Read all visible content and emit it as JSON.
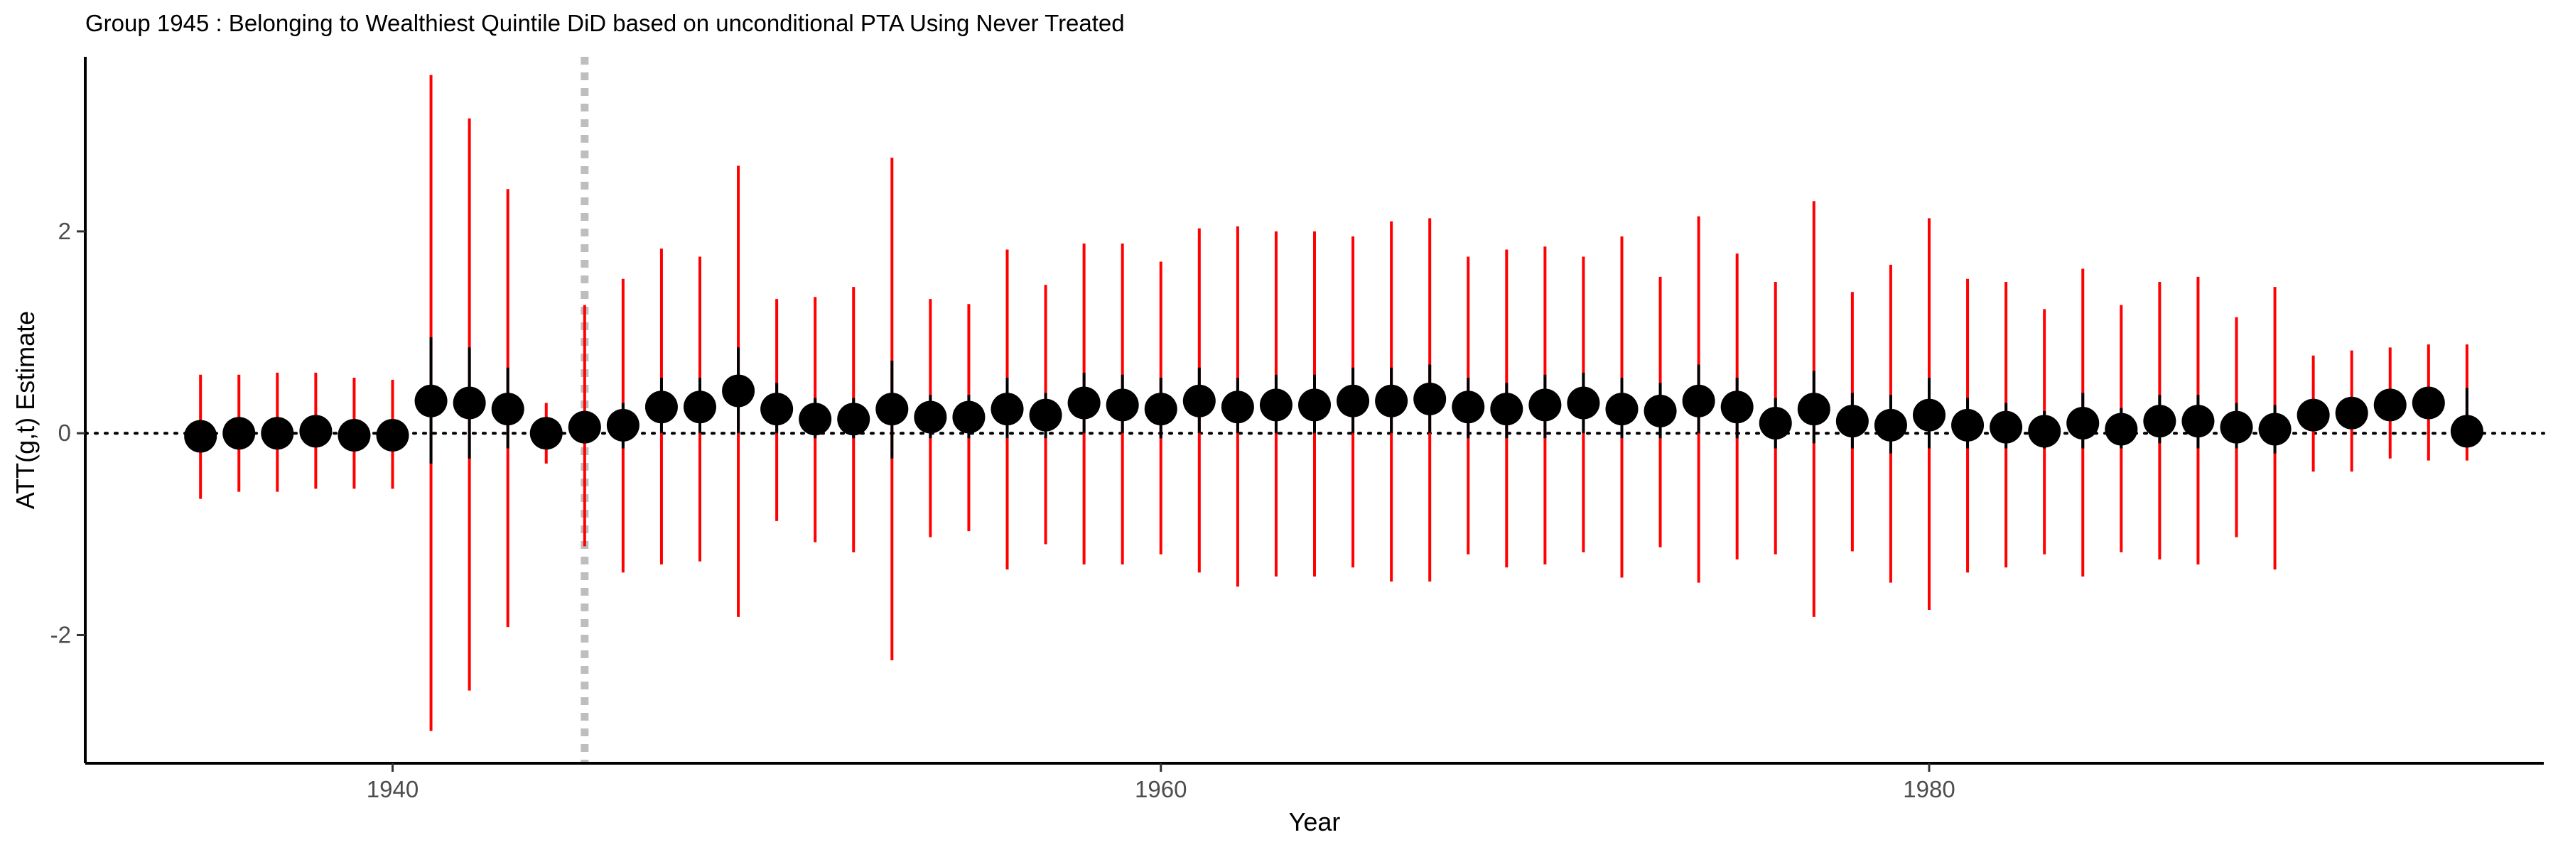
{
  "chart_data": {
    "type": "scatter",
    "title": "Group 1945 : Belonging to Wealthiest Quintile DiD based on unconditional PTA Using Never Treated",
    "xlabel": "Year",
    "ylabel": "ATT(g,t) Estimate",
    "xlim": [
      1932,
      1996
    ],
    "ylim": [
      -3.27,
      3.73
    ],
    "xticks": [
      1940,
      1960,
      1980
    ],
    "yticks": [
      -2,
      0,
      2
    ],
    "reference_line_y": 0,
    "treatment_line_x": 1945,
    "grid": false,
    "colors": {
      "point": "#000000",
      "inner_ci": "#000000",
      "outer_ci": "#ff0000",
      "treatment_line": "#bebebe"
    },
    "series": [
      {
        "x": [
          1935,
          1936,
          1937,
          1938,
          1939,
          1940,
          1941,
          1942,
          1943,
          1944,
          1945,
          1946,
          1947,
          1948,
          1949,
          1950,
          1951,
          1952,
          1953,
          1954,
          1955,
          1956,
          1957,
          1958,
          1959,
          1960,
          1961,
          1962,
          1963,
          1964,
          1965,
          1966,
          1967,
          1968,
          1969,
          1970,
          1971,
          1972,
          1973,
          1974,
          1975,
          1976,
          1977,
          1978,
          1979,
          1980,
          1981,
          1982,
          1983,
          1984,
          1985,
          1986,
          1987,
          1988,
          1989,
          1990,
          1991,
          1992,
          1993,
          1994
        ],
        "y": [
          -0.03,
          0.0,
          0.0,
          0.02,
          -0.02,
          -0.02,
          0.32,
          0.3,
          0.24,
          0.0,
          0.06,
          0.08,
          0.26,
          0.26,
          0.42,
          0.24,
          0.14,
          0.14,
          0.24,
          0.16,
          0.16,
          0.24,
          0.18,
          0.3,
          0.28,
          0.24,
          0.32,
          0.26,
          0.28,
          0.28,
          0.32,
          0.32,
          0.34,
          0.26,
          0.24,
          0.28,
          0.3,
          0.24,
          0.22,
          0.32,
          0.26,
          0.1,
          0.24,
          0.12,
          0.08,
          0.18,
          0.08,
          0.06,
          0.02,
          0.1,
          0.04,
          0.12,
          0.12,
          0.06,
          0.04,
          0.18,
          0.2,
          0.28,
          0.3,
          0.02
        ],
        "inner_ci_lower": [
          -0.15,
          -0.12,
          -0.12,
          -0.1,
          -0.14,
          -0.14,
          -0.3,
          -0.25,
          -0.15,
          -0.08,
          -0.1,
          -0.15,
          0.0,
          0.0,
          0.0,
          0.0,
          -0.05,
          -0.05,
          -0.25,
          -0.05,
          -0.05,
          -0.05,
          -0.05,
          0.0,
          0.0,
          -0.05,
          0.0,
          0.0,
          0.0,
          0.0,
          0.0,
          0.0,
          0.0,
          -0.05,
          -0.05,
          -0.05,
          0.0,
          -0.05,
          -0.05,
          0.0,
          -0.05,
          -0.15,
          -0.1,
          -0.15,
          -0.2,
          -0.15,
          -0.15,
          -0.15,
          -0.15,
          -0.15,
          -0.15,
          -0.1,
          -0.15,
          -0.15,
          -0.2,
          0.05,
          0.05,
          0.15,
          0.15,
          0.15
        ],
        "inner_ci_upper": [
          0.1,
          0.12,
          0.12,
          0.14,
          0.1,
          0.1,
          0.95,
          0.85,
          0.65,
          0.08,
          0.2,
          0.3,
          0.55,
          0.55,
          0.85,
          0.5,
          0.35,
          0.35,
          0.72,
          0.38,
          0.38,
          0.55,
          0.4,
          0.6,
          0.58,
          0.55,
          0.65,
          0.55,
          0.58,
          0.58,
          0.65,
          0.65,
          0.68,
          0.55,
          0.5,
          0.58,
          0.6,
          0.55,
          0.5,
          0.68,
          0.55,
          0.35,
          0.62,
          0.4,
          0.38,
          0.55,
          0.35,
          0.3,
          0.22,
          0.4,
          0.25,
          0.38,
          0.38,
          0.3,
          0.28,
          0.32,
          0.35,
          0.42,
          0.45,
          0.45
        ],
        "outer_ci_lower": [
          -0.65,
          -0.58,
          -0.58,
          -0.55,
          -0.55,
          -0.55,
          -2.95,
          -2.55,
          -1.92,
          -0.3,
          -1.12,
          -1.38,
          -1.3,
          -1.27,
          -1.82,
          -0.87,
          -1.08,
          -1.18,
          -2.25,
          -1.03,
          -0.97,
          -1.35,
          -1.1,
          -1.3,
          -1.3,
          -1.2,
          -1.38,
          -1.52,
          -1.42,
          -1.42,
          -1.33,
          -1.47,
          -1.47,
          -1.2,
          -1.33,
          -1.3,
          -1.18,
          -1.43,
          -1.13,
          -1.48,
          -1.25,
          -1.2,
          -1.82,
          -1.17,
          -1.48,
          -1.75,
          -1.38,
          -1.33,
          -1.2,
          -1.42,
          -1.18,
          -1.25,
          -1.3,
          -1.03,
          -1.35,
          -0.38,
          -0.38,
          -0.25,
          -0.27,
          -0.27
        ],
        "outer_ci_upper": [
          0.58,
          0.58,
          0.6,
          0.6,
          0.55,
          0.53,
          3.55,
          3.12,
          2.42,
          0.3,
          1.27,
          1.53,
          1.83,
          1.75,
          2.65,
          1.33,
          1.35,
          1.45,
          2.73,
          1.33,
          1.28,
          1.82,
          1.47,
          1.88,
          1.88,
          1.7,
          2.03,
          2.05,
          2.0,
          2.0,
          1.95,
          2.1,
          2.13,
          1.75,
          1.82,
          1.85,
          1.75,
          1.95,
          1.55,
          2.15,
          1.78,
          1.5,
          2.3,
          1.4,
          1.67,
          2.13,
          1.53,
          1.5,
          1.23,
          1.63,
          1.27,
          1.5,
          1.55,
          1.15,
          1.45,
          0.77,
          0.82,
          0.85,
          0.88,
          0.88
        ]
      }
    ]
  }
}
